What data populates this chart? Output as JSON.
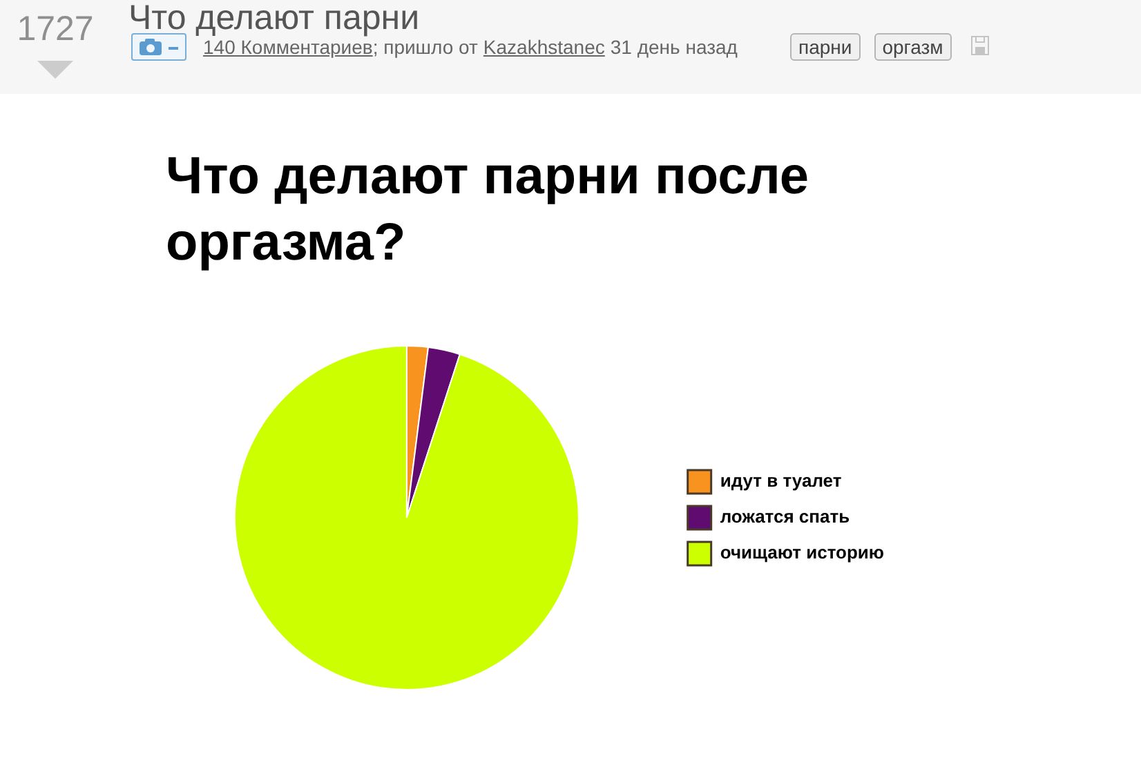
{
  "chart_data": {
    "type": "pie",
    "title": "Что делают парни после оргазма?",
    "categories": [
      "идут в туалет",
      "ложатся спать",
      "очищают историю"
    ],
    "values": [
      2,
      3,
      95
    ],
    "colors": [
      "#f7931e",
      "#5f0b6f",
      "#ccff00"
    ],
    "legend": "right",
    "annotations": [
      "1727",
      "Что делают парни",
      "140 Комментариев",
      "; пришло от",
      "Kazakhstanec",
      "31 день назад",
      "парни",
      "оргазм"
    ]
  }
}
